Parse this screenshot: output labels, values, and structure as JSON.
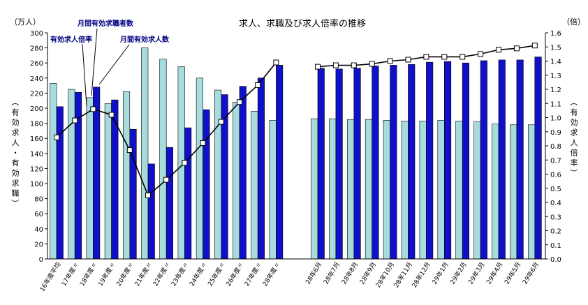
{
  "chart_data": {
    "type": "bar",
    "title": "求人、求職及び求人倍率の推移",
    "left_unit": "（万人）",
    "right_unit": "（倍）",
    "ylabel_left": "（有効求人・有効求職）",
    "ylabel_right": "（有効求人倍率）",
    "ylim_left": [
      0,
      300
    ],
    "ylim_right": [
      0,
      1.6
    ],
    "left_ticks": [
      "0",
      "20",
      "40",
      "60",
      "80",
      "100",
      "120",
      "140",
      "160",
      "180",
      "200",
      "220",
      "240",
      "260",
      "280",
      "300"
    ],
    "right_ticks": [
      "0.0",
      "0.1",
      "0.2",
      "0.3",
      "0.4",
      "0.5",
      "0.6",
      "0.7",
      "0.8",
      "0.9",
      "1.0",
      "1.1",
      "1.2",
      "1.3",
      "1.4",
      "1.5",
      "1.6"
    ],
    "categories": [
      "16年度平均",
      "17年度〃",
      "18年度〃",
      "19年度〃",
      "20年度〃",
      "21年度〃",
      "22年度〃",
      "23年度〃",
      "24年度〃",
      "25年度〃",
      "26年度〃",
      "27年度〃",
      "28年度〃",
      "28年6月",
      "28年7月",
      "28年8月",
      "28年9月",
      "28年10月",
      "28年11月",
      "28年12月",
      "29年1月",
      "29年2月",
      "29年3月",
      "29年4月",
      "29年5月",
      "29年6月"
    ],
    "series": [
      {
        "name": "月間有効求職者数",
        "axis": "left",
        "color": "#a8dcdc",
        "values": [
          233,
          225,
          214,
          206,
          222,
          280,
          265,
          255,
          240,
          224,
          208,
          196,
          184,
          186,
          186,
          185,
          185,
          184,
          183,
          183,
          184,
          183,
          182,
          179,
          178,
          178
        ]
      },
      {
        "name": "月間有効求人数",
        "axis": "left",
        "color": "#1010c8",
        "values": [
          202,
          221,
          228,
          211,
          172,
          126,
          148,
          174,
          198,
          218,
          229,
          240,
          257,
          253,
          252,
          253,
          256,
          257,
          258,
          261,
          262,
          260,
          263,
          264,
          264,
          268
        ]
      },
      {
        "name": "有効求人倍率",
        "axis": "right",
        "color": "#000000",
        "values": [
          0.86,
          0.98,
          1.06,
          1.02,
          0.77,
          0.45,
          0.56,
          0.68,
          0.82,
          0.97,
          1.11,
          1.23,
          1.39,
          1.36,
          1.37,
          1.37,
          1.38,
          1.4,
          1.41,
          1.43,
          1.43,
          1.43,
          1.45,
          1.48,
          1.49,
          1.51
        ]
      }
    ],
    "annotations": [
      {
        "text": "有効求人倍率",
        "points_to": "有効求人倍率"
      },
      {
        "text": "月間有効求職者数",
        "points_to": "月間有効求職者数"
      },
      {
        "text": "月間有効求人数",
        "points_to": "月間有効求人数"
      }
    ],
    "annotation_color": "#000080",
    "grid": false
  }
}
